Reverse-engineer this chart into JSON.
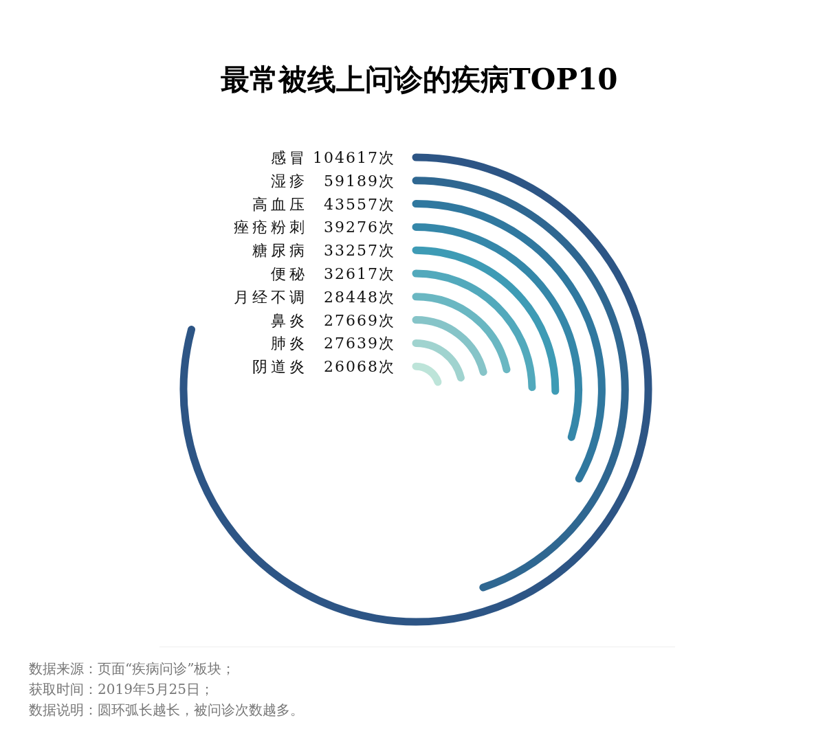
{
  "chart_data": {
    "type": "other",
    "title": "最常被线上问诊的疾病TOP10",
    "categories": [
      "感冒",
      "湿疹",
      "高血压",
      "痤疮粉刺",
      "糖尿病",
      "便秘",
      "月经不调",
      "鼻炎",
      "肺炎",
      "阴道炎"
    ],
    "values": [
      104617,
      59189,
      43557,
      39276,
      33257,
      32617,
      28448,
      27669,
      27639,
      26068
    ],
    "value_labels": [
      "104617次",
      "59189次",
      "43557次",
      "39276次",
      "33257次",
      "32617次",
      "28448次",
      "27669次",
      "27639次",
      "26068次"
    ],
    "colors": [
      "#2d5585",
      "#2f6791",
      "#30789f",
      "#3587a9",
      "#3e9bb5",
      "#52a9bc",
      "#6ab7c2",
      "#86c4c8",
      "#a0d3cf",
      "#bde4d9"
    ],
    "annotations": [
      "数据来源：页面“疾病问诊”板块；",
      "获取时间：2019年5月25日；",
      "数据说明：圆环弧长越长，被问诊次数越多。"
    ]
  }
}
